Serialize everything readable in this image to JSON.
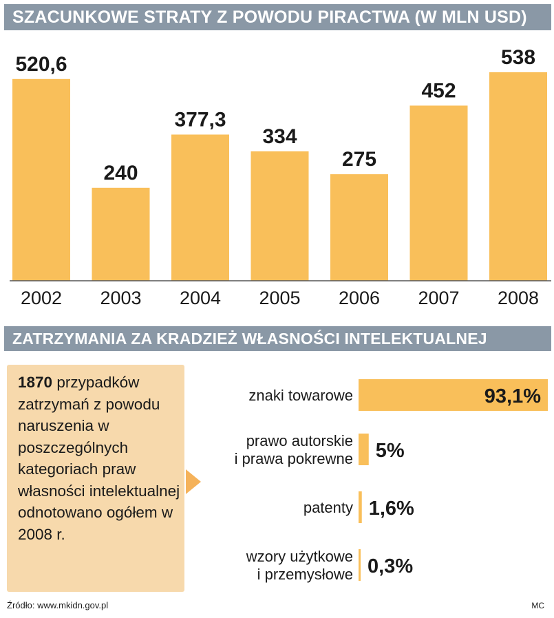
{
  "colors": {
    "banner_bg": "#8a98a6",
    "bar": "#f9bf5a",
    "info_box": "#f7d9ac",
    "arrow": "#f5b25a"
  },
  "header1": "SZACUNKOWE STRATY Z POWODU PIRACTWA (W MLN USD)",
  "header2": "ZATRZYMANIA ZA KRADZIEŻ WŁASNOŚCI INTELEKTUALNEJ",
  "info": {
    "count": "1870",
    "text": "przypadków zatrzymań z powodu naruszenia w poszczególnych kategoriach praw własności intelektualnej odnotowano ogółem w 2008 r."
  },
  "footer": {
    "source": "Źródło: www.mkidn.gov.pl",
    "author": "MC"
  },
  "chart_data": [
    {
      "type": "bar",
      "title": "SZACUNKOWE STRATY Z POWODU PIRACTWA (W MLN USD)",
      "categories": [
        "2002",
        "2003",
        "2004",
        "2005",
        "2006",
        "2007",
        "2008"
      ],
      "values": [
        520.6,
        240,
        377.3,
        334,
        275,
        452,
        538
      ],
      "value_labels": [
        "520,6",
        "240",
        "377,3",
        "334",
        "275",
        "452",
        "538"
      ],
      "ylim": [
        0,
        538
      ],
      "grid": false
    },
    {
      "type": "bar",
      "orientation": "horizontal",
      "title": "ZATRZYMANIA ZA KRADZIEŻ WŁASNOŚCI INTELEKTUALNEJ",
      "categories": [
        [
          "znaki towarowe"
        ],
        [
          "prawo autorskie",
          "i prawa pokrewne"
        ],
        [
          "patenty"
        ],
        [
          "wzory użytkowe",
          "i przemysłowe"
        ]
      ],
      "values": [
        93.1,
        5,
        1.6,
        0.3
      ],
      "value_labels": [
        "93,1%",
        "5%",
        "1,6%",
        "0,3%"
      ],
      "xlim": [
        0,
        93.1
      ],
      "grid": false
    }
  ]
}
